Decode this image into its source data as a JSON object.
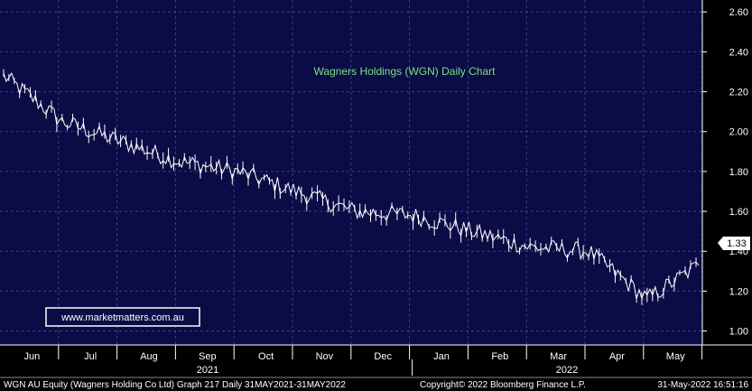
{
  "chart_data": {
    "type": "line",
    "title": "Wagners Holdings (WGN) Daily Chart",
    "watermark": "www.marketmatters.com.au",
    "last_price_label": "1.33",
    "last_price": 1.33,
    "y_ticks": [
      "2.60",
      "2.40",
      "2.20",
      "2.00",
      "1.80",
      "1.60",
      "1.40",
      "1.20",
      "1.00"
    ],
    "y_tick_values": [
      2.6,
      2.4,
      2.2,
      2.0,
      1.8,
      1.6,
      1.4,
      1.2,
      1.0
    ],
    "ylim": [
      0.93,
      2.66
    ],
    "x_months": [
      "Jun",
      "Jul",
      "Aug",
      "Sep",
      "Oct",
      "Nov",
      "Dec",
      "Jan",
      "Feb",
      "Mar",
      "Apr",
      "May"
    ],
    "years": [
      "2021",
      "2022"
    ],
    "grid": true,
    "series": [
      {
        "x": [
          "Jun",
          "Jul",
          "Aug",
          "Sep",
          "Oct",
          "Nov",
          "Dec",
          "Jan",
          "Feb",
          "Mar",
          "Apr",
          "May",
          "31-May-2022"
        ],
        "values": [
          2.28,
          2.05,
          1.95,
          1.85,
          1.8,
          1.7,
          1.6,
          1.58,
          1.5,
          1.42,
          1.4,
          1.16,
          1.33
        ]
      }
    ],
    "colors": {
      "background": "#0b0b45",
      "grid": "#3f3f8f",
      "line": "#ffffff",
      "title": "#7ee07e",
      "watermark_border": "#ffffff"
    }
  },
  "footer": {
    "left": "WGN AU Equity (Wagners Holding Co Ltd) Graph 217  Daily 31MAY2021-31MAY2022",
    "center": "Copyright© 2022 Bloomberg Finance L.P.",
    "right": "31-May-2022 16:51:16"
  }
}
